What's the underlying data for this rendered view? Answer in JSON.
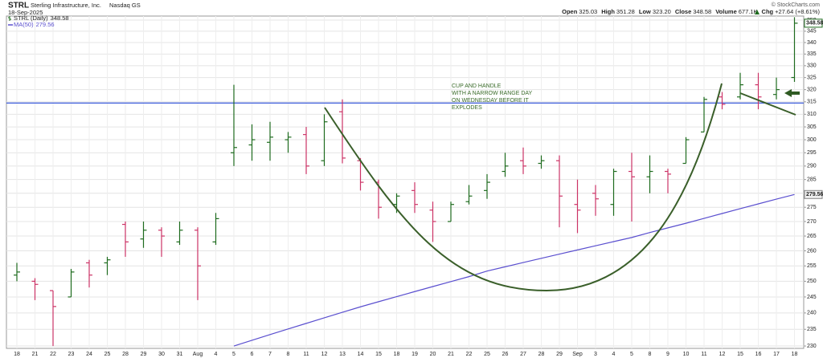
{
  "header": {
    "symbol": "STRL",
    "company": "Sterling Infrastructure, Inc.",
    "exchange": "Nasdaq GS",
    "date": "18-Sep-2025",
    "copyright": "© StockCharts.com",
    "quote": [
      {
        "label": "Open",
        "value": "325.03"
      },
      {
        "label": "High",
        "value": "351.28"
      },
      {
        "label": "Low",
        "value": "323.20"
      },
      {
        "label": "Close",
        "value": "348.58"
      },
      {
        "label": "Volume",
        "value": "677.1K"
      },
      {
        "label": "Chg",
        "value": "+27.64 (+8.61%)"
      }
    ]
  },
  "chart_data": {
    "type": "ohlc",
    "categories": [
      "18",
      "21",
      "22",
      "23",
      "24",
      "25",
      "28",
      "29",
      "30",
      "31",
      "Aug",
      "4",
      "5",
      "6",
      "7",
      "8",
      "11",
      "12",
      "13",
      "14",
      "15",
      "18",
      "19",
      "20",
      "21",
      "22",
      "25",
      "26",
      "27",
      "28",
      "29",
      "Sep",
      "3",
      "4",
      "5",
      "8",
      "9",
      "10",
      "11",
      "12",
      "15",
      "16",
      "17",
      "18"
    ],
    "series": [
      {
        "name": "STRL (Daily)",
        "type": "ohlc",
        "up_color": "#1e6b1e",
        "down_color": "#cc3366",
        "open": [
          252,
          250,
          247,
          245,
          256,
          256,
          269,
          264,
          267,
          263,
          267,
          263,
          295,
          298,
          299,
          300,
          302,
          292,
          311,
          292,
          284,
          276,
          281,
          274,
          270,
          277,
          281,
          288,
          292,
          291,
          292,
          276,
          280,
          276,
          288,
          286,
          288,
          291,
          303,
          317,
          317,
          322,
          318,
          325.03
        ],
        "high": [
          256,
          251,
          247,
          254,
          257,
          258,
          270,
          270,
          268,
          270,
          268,
          273,
          322,
          306,
          307,
          303,
          305,
          310,
          316,
          293,
          285,
          280,
          284,
          277,
          277,
          283,
          287,
          295,
          297,
          294,
          294,
          285,
          283,
          289,
          295,
          294,
          289,
          301,
          317,
          319,
          327,
          327,
          325,
          351.28
        ],
        "low": [
          250,
          244,
          230,
          245,
          248,
          252,
          258,
          261,
          258,
          262,
          244,
          262,
          290,
          292,
          292,
          295,
          287,
          290,
          291,
          281,
          271,
          273,
          273,
          263,
          270,
          276,
          278,
          286,
          287,
          289,
          268,
          266,
          272,
          272,
          270,
          280,
          280,
          291,
          303,
          312,
          316,
          312,
          316,
          323.2
        ],
        "close": [
          253,
          249,
          242,
          253,
          252,
          257,
          263,
          267,
          265,
          267,
          255,
          271,
          297,
          300,
          301,
          301,
          290,
          307,
          293,
          284,
          275,
          279,
          276,
          270,
          276,
          279,
          284,
          290,
          290,
          292,
          279,
          274,
          278,
          288,
          286,
          288,
          287,
          300,
          316,
          314,
          322,
          317,
          320,
          348.58
        ]
      },
      {
        "name": "MA(50)",
        "type": "line",
        "color": "#5a4fcf",
        "values": [
          null,
          null,
          null,
          null,
          null,
          null,
          null,
          null,
          null,
          null,
          null,
          null,
          230,
          231.7,
          233.4,
          235.1,
          236.8,
          238.5,
          240.2,
          241.9,
          243.5,
          245.1,
          246.7,
          248.3,
          249.9,
          251.5,
          253.3,
          254.7,
          256.1,
          257.5,
          258.9,
          260.3,
          261.7,
          263.1,
          264.5,
          266.2,
          267.8,
          269.4,
          271.1,
          272.8,
          274.5,
          276.2,
          277.9,
          279.56
        ]
      }
    ],
    "ylim": [
      229.3,
      351.8
    ],
    "yticks": [
      230,
      235,
      240,
      245,
      250,
      255,
      260,
      265,
      270,
      275,
      280,
      285,
      290,
      295,
      300,
      305,
      310,
      315,
      320,
      325,
      330,
      335,
      340,
      345,
      350
    ],
    "log_scale": true,
    "grid": true,
    "hline": {
      "value": 314.5,
      "color": "#3b5bdb"
    },
    "annotation": [
      "CUP AND HANDLE",
      "WITH A NARROW RANGE DAY",
      "ON WEDNESDAY BEFORE IT",
      "EXPLODES"
    ]
  }
}
